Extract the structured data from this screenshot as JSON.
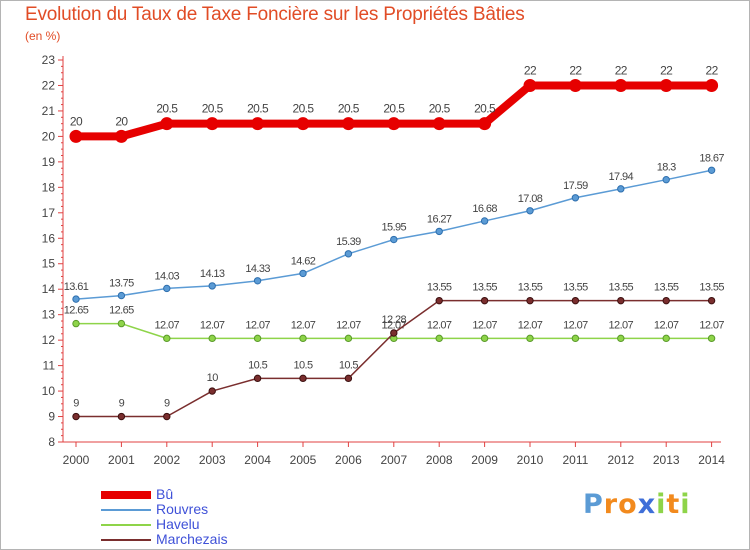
{
  "chart_data": {
    "type": "line",
    "title": "Evolution du Taux de Taxe Foncière sur les Propriétés Bâties",
    "unit_label": "(en %)",
    "x": [
      "2000",
      "2001",
      "2002",
      "2003",
      "2004",
      "2005",
      "2006",
      "2007",
      "2008",
      "2009",
      "2010",
      "2011",
      "2012",
      "2013",
      "2014"
    ],
    "yticks": [
      "8",
      "9",
      "10",
      "11",
      "12",
      "13",
      "14",
      "15",
      "16",
      "17",
      "18",
      "19",
      "20",
      "21",
      "22",
      "23"
    ],
    "ylim": [
      8,
      23
    ],
    "grid": false,
    "series": [
      {
        "name": "Bû",
        "color": "#e60000",
        "values": [
          20,
          20,
          20.5,
          20.5,
          20.5,
          20.5,
          20.5,
          20.5,
          20.5,
          20.5,
          22,
          22,
          22,
          22,
          22
        ],
        "labels": [
          "20",
          "20",
          "20.5",
          "20.5",
          "20.5",
          "20.5",
          "20.5",
          "20.5",
          "20.5",
          "20.5",
          "22",
          "22",
          "22",
          "22",
          "22"
        ]
      },
      {
        "name": "Rouvres",
        "color": "#5b9bd5",
        "values": [
          13.61,
          13.75,
          14.03,
          14.13,
          14.33,
          14.62,
          15.39,
          15.95,
          16.27,
          16.68,
          17.08,
          17.59,
          17.94,
          18.3,
          18.67
        ],
        "labels": [
          "13.61",
          "13.75",
          "14.03",
          "14.13",
          "14.33",
          "14.62",
          "15.39",
          "15.95",
          "16.27",
          "16.68",
          "17.08",
          "17.59",
          "17.94",
          "18.3",
          "18.67"
        ]
      },
      {
        "name": "Havelu",
        "color": "#8ed449",
        "values": [
          12.65,
          12.65,
          12.07,
          12.07,
          12.07,
          12.07,
          12.07,
          12.07,
          12.07,
          12.07,
          12.07,
          12.07,
          12.07,
          12.07,
          12.07
        ],
        "labels": [
          "12.65",
          "12.65",
          "12.07",
          "12.07",
          "12.07",
          "12.07",
          "12.07",
          "12.07",
          "12.07",
          "12.07",
          "12.07",
          "12.07",
          "12.07",
          "12.07",
          "12.07"
        ]
      },
      {
        "name": "Marchezais",
        "color": "#7a2e2e",
        "values": [
          9,
          9,
          9,
          10,
          10.5,
          10.5,
          10.5,
          12.28,
          13.55,
          13.55,
          13.55,
          13.55,
          13.55,
          13.55,
          13.55
        ],
        "labels": [
          "9",
          "9",
          "9",
          "10",
          "10.5",
          "10.5",
          "10.5",
          "12.28",
          "13.55",
          "13.55",
          "13.55",
          "13.55",
          "13.55",
          "13.55",
          "13.55"
        ]
      }
    ]
  },
  "logo": {
    "letters": [
      "P",
      "r",
      "o",
      "x",
      "i",
      "t",
      "i"
    ]
  }
}
